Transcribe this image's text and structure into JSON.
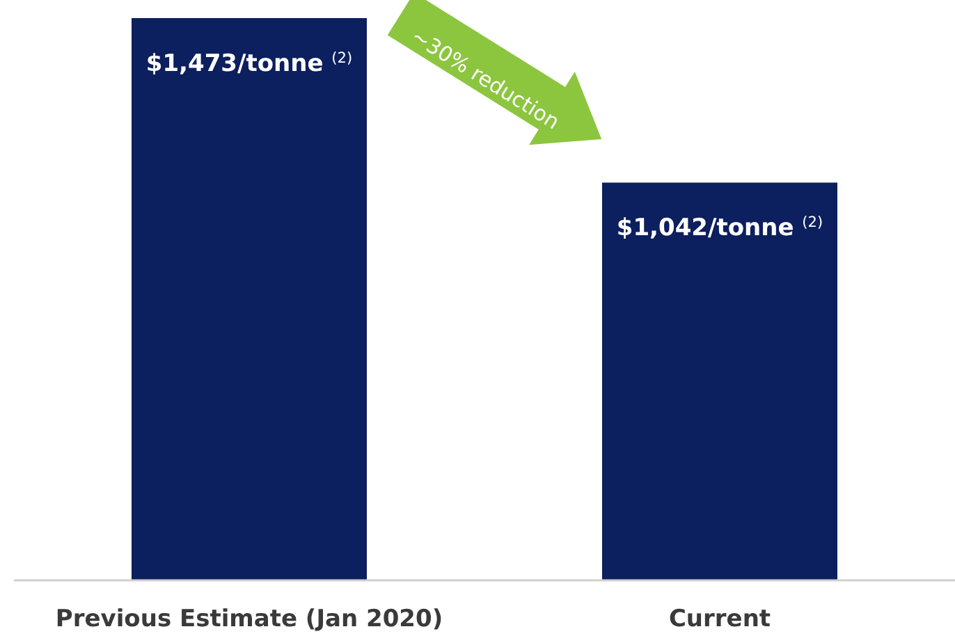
{
  "chart_data": {
    "type": "bar",
    "categories": [
      "Previous Estimate (Jan 2020)",
      "Current"
    ],
    "values": [
      1473,
      1042
    ],
    "value_labels": [
      "$1,473/tonne $^{(2)}$",
      "$1,042/tonne $^{(2)}$"
    ],
    "color": "#0c1f5e",
    "annotations": [
      "~30% reduction"
    ]
  }
}
